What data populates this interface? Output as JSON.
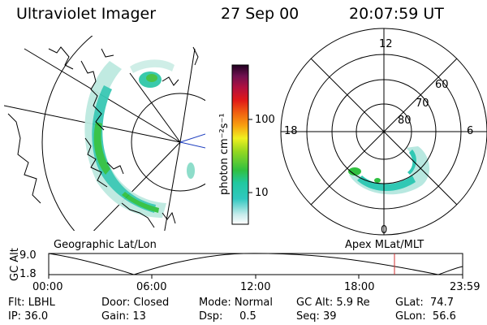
{
  "header": {
    "instrument": "Ultraviolet Imager",
    "date": "27 Sep 00",
    "time": "20:07:59 UT"
  },
  "colorbar": {
    "unit_label": "photon cm⁻²s⁻¹",
    "ticks": [
      "100",
      "10"
    ]
  },
  "polar_plot": {
    "mlt_labels": {
      "top": "12",
      "left": "18",
      "right": "6",
      "bottom": "0"
    },
    "lat_labels": [
      "60",
      "70",
      "80"
    ]
  },
  "panel_labels": {
    "left": "Geographic Lat/Lon",
    "right": "Apex MLat/MLT"
  },
  "altitude_chart": {
    "ylabel": "GC Alt",
    "yticks": [
      "9.0",
      "1.8"
    ],
    "xticks": [
      "00:00",
      "06:00",
      "12:00",
      "18:00",
      "23:59"
    ]
  },
  "info": {
    "row1": {
      "filter": "Flt: LBHL",
      "door": "Door: Closed",
      "mode": "Mode: Normal",
      "gc_alt": "GC Alt: 5.9 Re",
      "glat": "GLat:  74.7"
    },
    "row2": {
      "ip": "IP: 36.0",
      "gain": "Gain: 13",
      "dsp": "Dsp:     0.5",
      "seq": "Seq: 39",
      "glon": "GLon:  56.6"
    }
  },
  "colors": {
    "marker_line": "#d03030",
    "aurora_light": "#a8e4d8",
    "aurora_mid": "#28c8b4",
    "aurora_green": "#30c040"
  }
}
